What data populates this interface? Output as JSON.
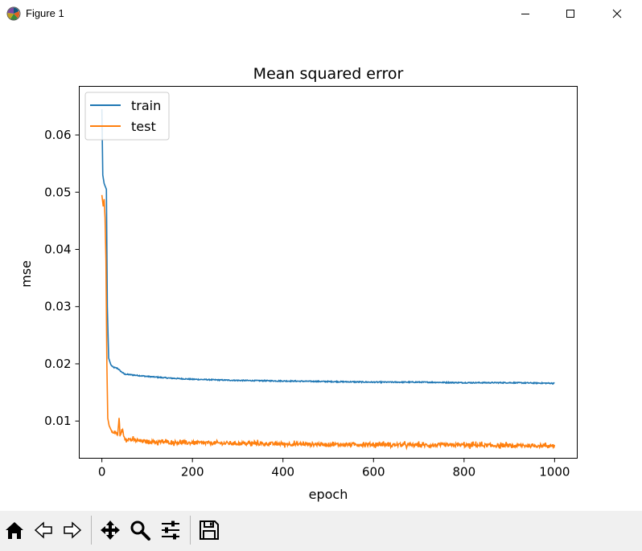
{
  "window": {
    "title": "Figure 1",
    "buttons": [
      "minimize-icon",
      "maximize-icon",
      "close-icon"
    ]
  },
  "toolbar": {
    "tools": [
      "home-icon",
      "back-icon",
      "forward-icon",
      "pan-icon",
      "zoom-icon",
      "configure-subplots-icon",
      "save-icon"
    ]
  },
  "chart_data": {
    "type": "line",
    "title": "Mean squared error",
    "xlabel": "epoch",
    "ylabel": "mse",
    "xlim": [
      -50,
      1050
    ],
    "ylim": [
      0.0035,
      0.0685
    ],
    "xticks": [
      0,
      200,
      400,
      600,
      800,
      1000
    ],
    "xtick_labels": [
      "0",
      "200",
      "400",
      "600",
      "800",
      "1000"
    ],
    "yticks": [
      0.01,
      0.02,
      0.03,
      0.04,
      0.05,
      0.06
    ],
    "ytick_labels": [
      "0.01",
      "0.02",
      "0.03",
      "0.04",
      "0.05",
      "0.06"
    ],
    "grid": false,
    "legend": "upper left",
    "series": [
      {
        "name": "train",
        "color": "#1f77b4",
        "x": [
          0,
          2,
          5,
          10,
          12,
          15,
          20,
          25,
          35,
          40,
          50,
          75,
          100,
          150,
          200,
          300,
          400,
          500,
          600,
          700,
          800,
          900,
          1000
        ],
        "y": [
          0.0645,
          0.053,
          0.0515,
          0.0505,
          0.03,
          0.021,
          0.0198,
          0.0194,
          0.0192,
          0.0188,
          0.0182,
          0.018,
          0.0178,
          0.0175,
          0.0173,
          0.0171,
          0.017,
          0.0169,
          0.0168,
          0.0168,
          0.0167,
          0.0167,
          0.0166
        ]
      },
      {
        "name": "test",
        "color": "#ff7f0e",
        "x": [
          0,
          3,
          5,
          7,
          9,
          11,
          13,
          16,
          20,
          25,
          30,
          35,
          38,
          40,
          45,
          50,
          60,
          75,
          100,
          150,
          200,
          300,
          400,
          500,
          600,
          700,
          800,
          900,
          1000
        ],
        "y": [
          0.0495,
          0.0475,
          0.0488,
          0.0455,
          0.038,
          0.02,
          0.0105,
          0.0092,
          0.0085,
          0.0078,
          0.0082,
          0.0075,
          0.0108,
          0.0075,
          0.0085,
          0.007,
          0.0068,
          0.0066,
          0.0064,
          0.0063,
          0.0062,
          0.0061,
          0.006,
          0.0059,
          0.0059,
          0.0058,
          0.0058,
          0.0057,
          0.0057
        ]
      }
    ]
  }
}
